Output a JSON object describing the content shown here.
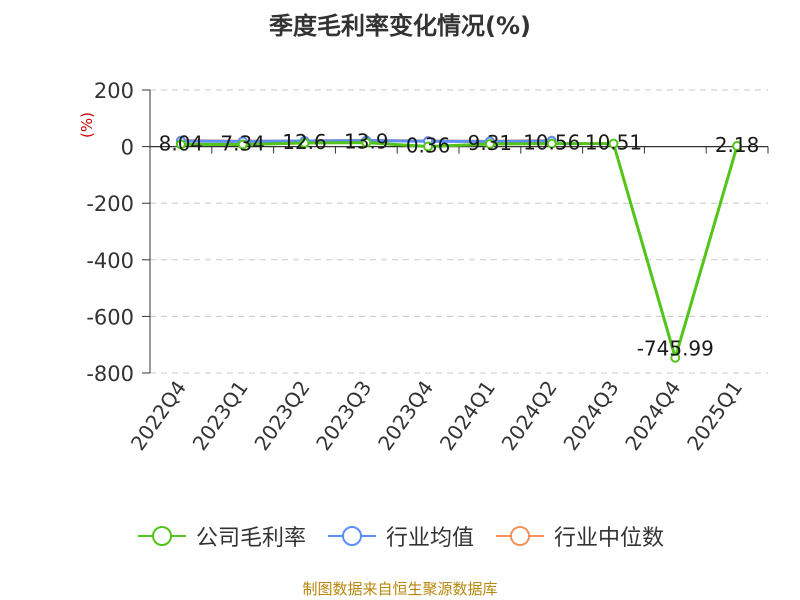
{
  "title": "季度毛利率变化情况(%)",
  "source": "制图数据来自恒生聚源数据库",
  "chart_data": {
    "type": "line",
    "title": "季度毛利率变化情况(%)",
    "ylabel": "(%)",
    "xlabel": "",
    "categories": [
      "2022Q4",
      "2023Q1",
      "2023Q2",
      "2023Q3",
      "2023Q4",
      "2024Q1",
      "2024Q2",
      "2024Q3",
      "2024Q4",
      "2025Q1"
    ],
    "ylim": [
      -800,
      200
    ],
    "yticks": [
      200,
      0,
      -200,
      -400,
      -600,
      -800
    ],
    "ytick_labels": [
      "200",
      "0",
      "-200",
      "-400",
      "-600",
      "-800"
    ],
    "grid": true,
    "legend_position": "bottom",
    "series": [
      {
        "name": "公司毛利率",
        "color": "#52c41a",
        "values": [
          8.04,
          7.34,
          12.6,
          13.9,
          0.36,
          9.31,
          10.56,
          10.51,
          -745.99,
          2.18
        ],
        "labels": [
          "8.04",
          "7.34",
          "12.6",
          "13.9",
          "0.36",
          "9.31",
          "10.56",
          "10.51",
          "-745.99",
          "2.18"
        ]
      },
      {
        "name": "行业均值",
        "color": "#5b8ff9",
        "values": [
          20,
          18,
          20,
          21,
          19,
          18,
          20,
          null,
          null,
          null
        ]
      },
      {
        "name": "行业中位数",
        "color": "#f4915d",
        "values": [
          21,
          19,
          20,
          22,
          20,
          19,
          21,
          null,
          null,
          null
        ]
      }
    ]
  }
}
